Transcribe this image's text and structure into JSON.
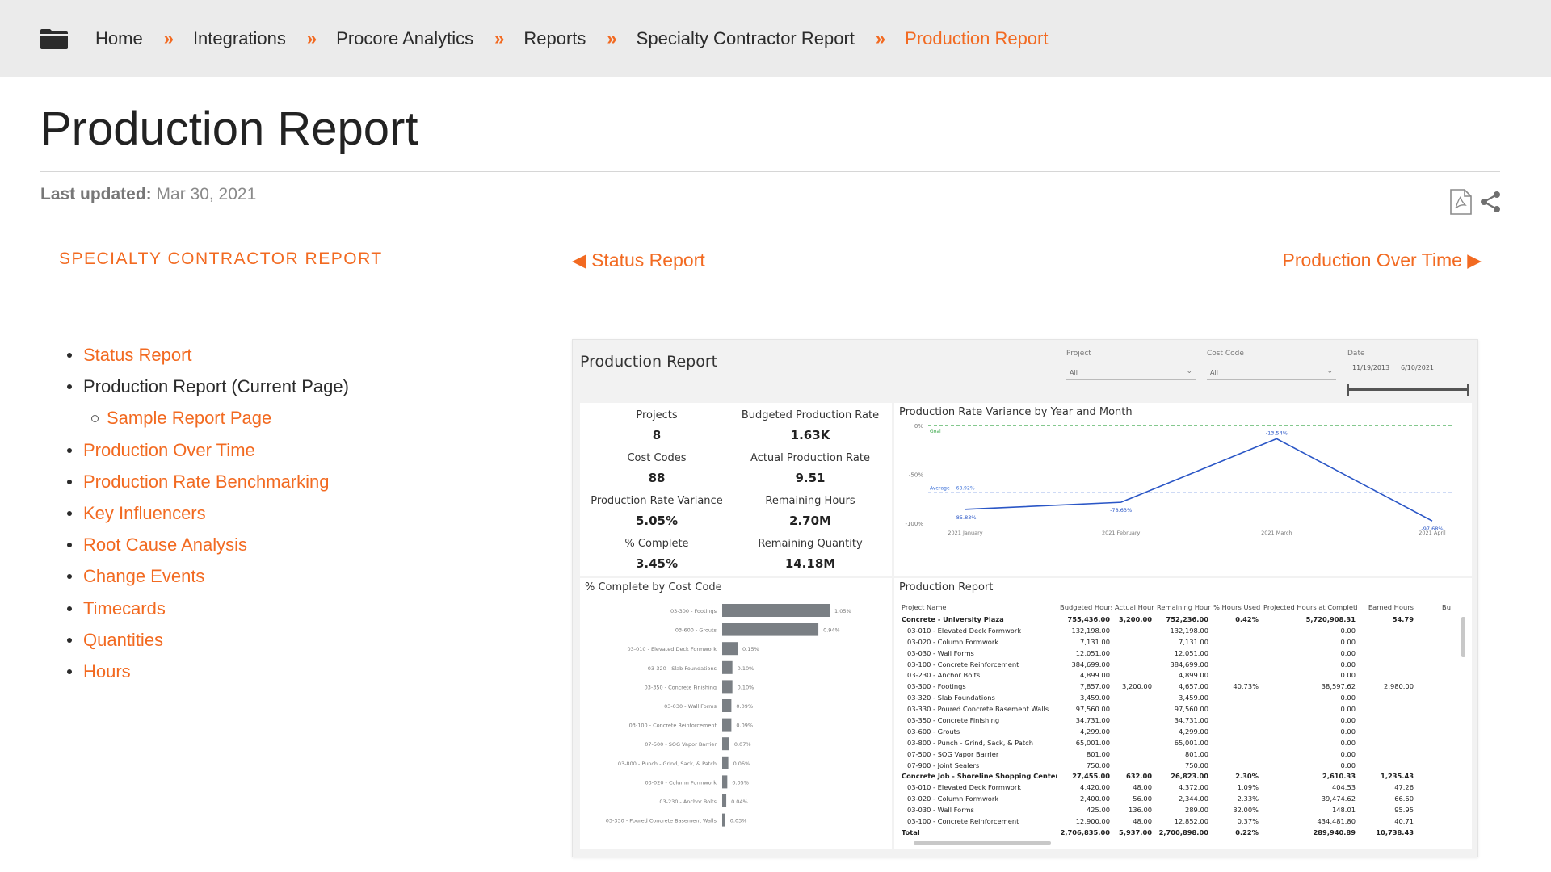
{
  "breadcrumb": {
    "items": [
      "Home",
      "Integrations",
      "Procore Analytics",
      "Reports",
      "Specialty Contractor Report",
      "Production Report"
    ],
    "separator": "»"
  },
  "page": {
    "title": "Production Report",
    "last_updated_label": "Last updated:",
    "last_updated_value": "Mar 30, 2021"
  },
  "actions": {
    "pdf_icon": "pdf-icon",
    "share_icon": "share-icon"
  },
  "section_title": "SPECIALTY CONTRACTOR REPORT",
  "pager": {
    "prev": "◀ Status Report",
    "next": "Production Over Time ▶"
  },
  "nav": [
    {
      "label": "Status Report"
    },
    {
      "label": "Production Report (Current Page)"
    },
    {
      "label": "Sample Report Page"
    },
    {
      "label": "Production Over Time"
    },
    {
      "label": "Production Rate Benchmarking"
    },
    {
      "label": "Key Influencers"
    },
    {
      "label": "Root Cause Analysis"
    },
    {
      "label": "Change Events"
    },
    {
      "label": "Timecards"
    },
    {
      "label": "Quantities"
    },
    {
      "label": "Hours"
    }
  ],
  "report": {
    "title": "Production Report",
    "filters": {
      "project_label": "Project",
      "project_value": "All",
      "cost_code_label": "Cost Code",
      "cost_code_value": "All",
      "date_label": "Date",
      "date_start": "11/19/2013",
      "date_end": "6/10/2021"
    },
    "kpis": [
      {
        "label": "Projects",
        "value": "8"
      },
      {
        "label": "Budgeted Production Rate",
        "value": "1.63K"
      },
      {
        "label": "Cost Codes",
        "value": "88"
      },
      {
        "label": "Actual Production Rate",
        "value": "9.51"
      },
      {
        "label": "Production Rate Variance",
        "value": "5.05%"
      },
      {
        "label": "Remaining Hours",
        "value": "2.70M"
      },
      {
        "label": "% Complete",
        "value": "3.45%"
      },
      {
        "label": "Remaining Quantity",
        "value": "14.18M"
      }
    ],
    "line_title": "Production Rate Variance by Year and Month",
    "bar_title": "% Complete by Cost Code",
    "table_title": "Production Report",
    "table": {
      "columns": [
        "Project Name",
        "Budgeted Hours",
        "Actual Hours",
        "Remaining Hours",
        "% Hours Used",
        "Projected Hours at Completion",
        "Earned Hours",
        "Bu"
      ],
      "rows": [
        {
          "kind": "grp",
          "cells": [
            "Concrete - University Plaza",
            "755,436.00",
            "3,200.00",
            "752,236.00",
            "0.42%",
            "5,720,908.31",
            "54.79",
            ""
          ]
        },
        {
          "kind": "child",
          "cells": [
            "03-010 - Elevated Deck Formwork",
            "132,198.00",
            "",
            "132,198.00",
            "",
            "0.00",
            "",
            ""
          ]
        },
        {
          "kind": "child",
          "cells": [
            "03-020 - Column Formwork",
            "7,131.00",
            "",
            "7,131.00",
            "",
            "0.00",
            "",
            ""
          ]
        },
        {
          "kind": "child",
          "cells": [
            "03-030 - Wall Forms",
            "12,051.00",
            "",
            "12,051.00",
            "",
            "0.00",
            "",
            ""
          ]
        },
        {
          "kind": "child",
          "cells": [
            "03-100 - Concrete Reinforcement",
            "384,699.00",
            "",
            "384,699.00",
            "",
            "0.00",
            "",
            ""
          ]
        },
        {
          "kind": "child",
          "cells": [
            "03-230 - Anchor Bolts",
            "4,899.00",
            "",
            "4,899.00",
            "",
            "0.00",
            "",
            ""
          ]
        },
        {
          "kind": "child",
          "cells": [
            "03-300 - Footings",
            "7,857.00",
            "3,200.00",
            "4,657.00",
            "40.73%",
            "38,597.62",
            "2,980.00",
            ""
          ]
        },
        {
          "kind": "child",
          "cells": [
            "03-320 - Slab Foundations",
            "3,459.00",
            "",
            "3,459.00",
            "",
            "0.00",
            "",
            ""
          ]
        },
        {
          "kind": "child",
          "cells": [
            "03-330 - Poured Concrete Basement Walls",
            "97,560.00",
            "",
            "97,560.00",
            "",
            "0.00",
            "",
            ""
          ]
        },
        {
          "kind": "child",
          "cells": [
            "03-350 - Concrete Finishing",
            "34,731.00",
            "",
            "34,731.00",
            "",
            "0.00",
            "",
            ""
          ]
        },
        {
          "kind": "child",
          "cells": [
            "03-600 - Grouts",
            "4,299.00",
            "",
            "4,299.00",
            "",
            "0.00",
            "",
            ""
          ]
        },
        {
          "kind": "child",
          "cells": [
            "03-800 - Punch - Grind, Sack, & Patch",
            "65,001.00",
            "",
            "65,001.00",
            "",
            "0.00",
            "",
            ""
          ]
        },
        {
          "kind": "child",
          "cells": [
            "07-500 - SOG Vapor Barrier",
            "801.00",
            "",
            "801.00",
            "",
            "0.00",
            "",
            ""
          ]
        },
        {
          "kind": "child",
          "cells": [
            "07-900 - Joint Sealers",
            "750.00",
            "",
            "750.00",
            "",
            "0.00",
            "",
            ""
          ]
        },
        {
          "kind": "grp",
          "cells": [
            "Concrete Job - Shoreline Shopping Center",
            "27,455.00",
            "632.00",
            "26,823.00",
            "2.30%",
            "2,610.33",
            "1,235.43",
            ""
          ]
        },
        {
          "kind": "child",
          "cells": [
            "03-010 - Elevated Deck Formwork",
            "4,420.00",
            "48.00",
            "4,372.00",
            "1.09%",
            "404.53",
            "47.26",
            ""
          ]
        },
        {
          "kind": "child",
          "cells": [
            "03-020 - Column Formwork",
            "2,400.00",
            "56.00",
            "2,344.00",
            "2.33%",
            "39,474.62",
            "66.60",
            ""
          ]
        },
        {
          "kind": "child",
          "cells": [
            "03-030 - Wall Forms",
            "425.00",
            "136.00",
            "289.00",
            "32.00%",
            "148.01",
            "95.95",
            ""
          ]
        },
        {
          "kind": "child",
          "cells": [
            "03-100 - Concrete Reinforcement",
            "12,900.00",
            "48.00",
            "12,852.00",
            "0.37%",
            "434,481.80",
            "40.71",
            ""
          ]
        },
        {
          "kind": "tot",
          "cells": [
            "Total",
            "2,706,835.00",
            "5,937.00",
            "2,700,898.00",
            "0.22%",
            "289,940.89",
            "10,738.43",
            ""
          ]
        }
      ]
    }
  },
  "chart_data": [
    {
      "type": "line",
      "title": "Production Rate Variance by Year and Month",
      "x": [
        "2021 January",
        "2021 February",
        "2021 March",
        "2021 April"
      ],
      "series": [
        {
          "values": [
            -85.83,
            -78.63,
            -13.54,
            -97.68
          ]
        }
      ],
      "data_labels": [
        "-85.83%",
        "-78.63%",
        "-13.54%",
        "-97.68%"
      ],
      "ylim": [
        -100,
        0
      ],
      "y_ticks": [
        "0%",
        "-50%",
        "-100%"
      ],
      "reference_lines": [
        {
          "label": "Goal",
          "value": 0,
          "color": "#3aa84a"
        },
        {
          "label": "Average : -68.92%",
          "value": -68.92,
          "color": "#3a6fd8"
        }
      ],
      "line_color": "#2a56c6",
      "grid": false
    },
    {
      "type": "bar",
      "orientation": "horizontal",
      "title": "% Complete by Cost Code",
      "categories": [
        "03-300 - Footings",
        "03-600 - Grouts",
        "03-010 - Elevated Deck Formwork",
        "03-320 - Slab Foundations",
        "03-350 - Concrete Finishing",
        "03-030 - Wall Forms",
        "03-100 - Concrete Reinforcement",
        "07-500 - SOG Vapor Barrier",
        "03-800 - Punch - Grind, Sack, & Patch",
        "03-020 - Column Formwork",
        "03-230 - Anchor Bolts",
        "03-330 - Poured Concrete Basement Walls"
      ],
      "values": [
        1.05,
        0.94,
        0.15,
        0.1,
        0.1,
        0.09,
        0.09,
        0.07,
        0.06,
        0.05,
        0.04,
        0.03
      ],
      "data_labels": [
        "1.05%",
        "0.94%",
        "0.15%",
        "0.10%",
        "0.10%",
        "0.09%",
        "0.09%",
        "0.07%",
        "0.06%",
        "0.05%",
        "0.04%",
        "0.03%"
      ],
      "bar_color": "#7a7f84",
      "grid": false
    }
  ]
}
